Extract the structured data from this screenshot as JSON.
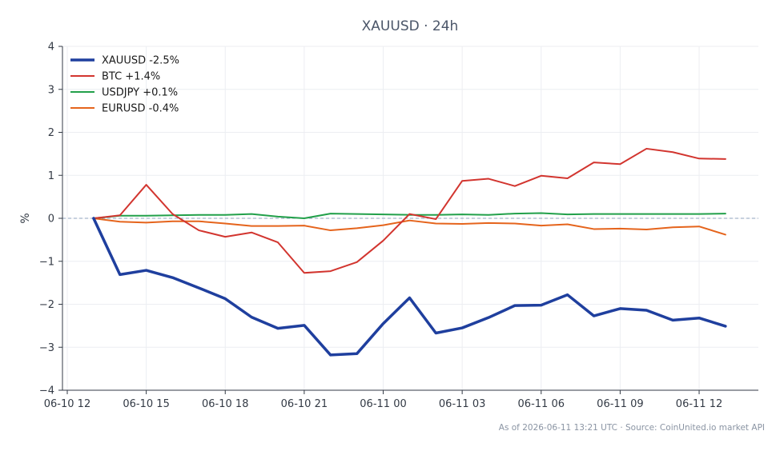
{
  "chart_data": {
    "type": "line",
    "title": "XAUUSD · 24h",
    "xlabel": "",
    "ylabel": "%",
    "x": [
      "06-10 13:00",
      "06-10 14:00",
      "06-10 15:00",
      "06-10 16:00",
      "06-10 17:00",
      "06-10 18:00",
      "06-10 19:00",
      "06-10 20:00",
      "06-10 21:00",
      "06-10 22:00",
      "06-10 23:00",
      "06-11 00:00",
      "06-11 01:00",
      "06-11 02:00",
      "06-11 03:00",
      "06-11 04:00",
      "06-11 05:00",
      "06-11 06:00",
      "06-11 07:00",
      "06-11 08:00",
      "06-11 09:00",
      "06-11 10:00",
      "06-11 11:00",
      "06-11 12:00",
      "06-11 13:00"
    ],
    "xlim": [
      "06-10 12:00",
      "06-11 14:15"
    ],
    "ylim": [
      -4,
      4
    ],
    "x_ticks": [
      "06-10 12",
      "06-10 15",
      "06-10 18",
      "06-10 21",
      "06-11 00",
      "06-11 03",
      "06-11 06",
      "06-11 09",
      "06-11 12"
    ],
    "y_ticks": [
      4,
      3,
      2,
      1,
      0,
      -1,
      -2,
      -3,
      -4
    ],
    "y_tick_labels": [
      "4",
      "3",
      "2",
      "1",
      "0",
      "−1",
      "−2",
      "−3",
      "−4"
    ],
    "grid": true,
    "zero_line": true,
    "legend_position": "top-left",
    "series": [
      {
        "name": "XAUUSD -2.5%",
        "color": "#1f3f9e",
        "values": [
          0.0,
          -1.31,
          -1.21,
          -1.38,
          -1.62,
          -1.87,
          -2.3,
          -2.56,
          -2.49,
          -3.18,
          -3.15,
          -2.45,
          -1.85,
          -2.67,
          -2.55,
          -2.31,
          -2.03,
          -2.02,
          -1.78,
          -2.27,
          -2.1,
          -2.14,
          -2.37,
          -2.32,
          -2.51
        ]
      },
      {
        "name": "BTC +1.4%",
        "color": "#d2352f",
        "values": [
          0.0,
          0.07,
          0.78,
          0.1,
          -0.28,
          -0.43,
          -0.33,
          -0.56,
          -1.27,
          -1.23,
          -1.02,
          -0.52,
          0.1,
          -0.02,
          0.87,
          0.92,
          0.75,
          0.99,
          0.93,
          1.3,
          1.26,
          1.62,
          1.54,
          1.39,
          1.38
        ]
      },
      {
        "name": "USDJPY +0.1%",
        "color": "#22a04a",
        "values": [
          0.0,
          0.06,
          0.06,
          0.07,
          0.08,
          0.08,
          0.1,
          0.04,
          0.0,
          0.11,
          0.1,
          0.09,
          0.08,
          0.08,
          0.09,
          0.08,
          0.11,
          0.12,
          0.09,
          0.1,
          0.1,
          0.1,
          0.1,
          0.1,
          0.11
        ]
      },
      {
        "name": "EURUSD -0.4%",
        "color": "#e5641c",
        "values": [
          0.0,
          -0.08,
          -0.1,
          -0.07,
          -0.07,
          -0.12,
          -0.18,
          -0.18,
          -0.17,
          -0.28,
          -0.23,
          -0.16,
          -0.05,
          -0.12,
          -0.13,
          -0.11,
          -0.12,
          -0.17,
          -0.14,
          -0.25,
          -0.24,
          -0.26,
          -0.21,
          -0.19,
          -0.38
        ]
      }
    ]
  },
  "footer": {
    "note": "As of 2026-06-11 13:21 UTC · Source: CoinUnited.io market API"
  }
}
